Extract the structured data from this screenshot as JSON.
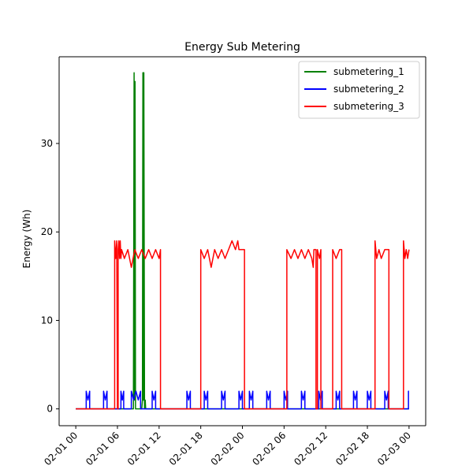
{
  "chart_data": {
    "type": "line",
    "title": "Energy Sub Metering",
    "xlabel": "",
    "ylabel": "Energy (Wh)",
    "x_unit": "datetime",
    "xlim": [
      "2007-02-01 00:00",
      "2007-02-03 00:00"
    ],
    "ylim": [
      -1.9,
      39.8
    ],
    "x_ticks": [
      "02-01 00",
      "02-01 06",
      "02-01 12",
      "02-01 18",
      "02-02 00",
      "02-02 06",
      "02-02 12",
      "02-02 18",
      "02-03 00"
    ],
    "y_ticks": [
      0,
      10,
      20,
      30
    ],
    "grid": false,
    "legend_position": "top-right",
    "series": [
      {
        "name": "submetering_1",
        "color": "#008000",
        "points": [
          [
            "2007-02-01 00:00",
            0
          ],
          [
            "2007-02-01 08:18",
            0
          ],
          [
            "2007-02-01 08:24",
            38
          ],
          [
            "2007-02-01 08:28",
            1
          ],
          [
            "2007-02-01 08:32",
            37
          ],
          [
            "2007-02-01 08:36",
            0
          ],
          [
            "2007-02-01 09:30",
            0
          ],
          [
            "2007-02-01 09:36",
            1
          ],
          [
            "2007-02-01 09:40",
            38
          ],
          [
            "2007-02-01 09:44",
            1
          ],
          [
            "2007-02-01 09:48",
            38
          ],
          [
            "2007-02-01 09:54",
            0
          ],
          [
            "2007-02-01 10:00",
            1
          ],
          [
            "2007-02-01 10:04",
            0
          ],
          [
            "2007-02-03 00:00",
            0
          ]
        ]
      },
      {
        "name": "submetering_2",
        "color": "#0000ff",
        "points": [
          [
            "2007-02-01 00:00",
            0
          ],
          [
            "2007-02-01 01:30",
            0
          ],
          [
            "2007-02-01 01:30",
            2
          ],
          [
            "2007-02-01 01:45",
            1
          ],
          [
            "2007-02-01 02:00",
            2
          ],
          [
            "2007-02-01 02:00",
            0
          ],
          [
            "2007-02-01 04:00",
            0
          ],
          [
            "2007-02-01 04:00",
            2
          ],
          [
            "2007-02-01 04:15",
            1
          ],
          [
            "2007-02-01 04:30",
            2
          ],
          [
            "2007-02-01 04:30",
            0
          ],
          [
            "2007-02-01 06:30",
            0
          ],
          [
            "2007-02-01 06:30",
            2
          ],
          [
            "2007-02-01 06:42",
            1
          ],
          [
            "2007-02-01 06:54",
            2
          ],
          [
            "2007-02-01 06:54",
            0
          ],
          [
            "2007-02-01 08:00",
            0
          ],
          [
            "2007-02-01 08:00",
            2
          ],
          [
            "2007-02-01 08:20",
            1
          ],
          [
            "2007-02-01 08:40",
            2
          ],
          [
            "2007-02-01 09:00",
            1
          ],
          [
            "2007-02-01 09:20",
            2
          ],
          [
            "2007-02-01 09:20",
            0
          ],
          [
            "2007-02-01 11:00",
            0
          ],
          [
            "2007-02-01 11:00",
            2
          ],
          [
            "2007-02-01 11:15",
            1
          ],
          [
            "2007-02-01 11:30",
            2
          ],
          [
            "2007-02-01 11:30",
            0
          ],
          [
            "2007-02-01 16:00",
            0
          ],
          [
            "2007-02-01 16:00",
            2
          ],
          [
            "2007-02-01 16:15",
            1
          ],
          [
            "2007-02-01 16:30",
            2
          ],
          [
            "2007-02-01 16:30",
            0
          ],
          [
            "2007-02-01 18:30",
            0
          ],
          [
            "2007-02-01 18:30",
            2
          ],
          [
            "2007-02-01 18:45",
            1
          ],
          [
            "2007-02-01 19:00",
            2
          ],
          [
            "2007-02-01 19:00",
            0
          ],
          [
            "2007-02-01 21:00",
            0
          ],
          [
            "2007-02-01 21:00",
            2
          ],
          [
            "2007-02-01 21:15",
            1
          ],
          [
            "2007-02-01 21:30",
            2
          ],
          [
            "2007-02-01 21:30",
            0
          ],
          [
            "2007-02-01 23:30",
            0
          ],
          [
            "2007-02-01 23:30",
            2
          ],
          [
            "2007-02-01 23:45",
            1
          ],
          [
            "2007-02-02 00:00",
            2
          ],
          [
            "2007-02-02 00:00",
            0
          ],
          [
            "2007-02-02 01:00",
            0
          ],
          [
            "2007-02-02 01:00",
            2
          ],
          [
            "2007-02-02 01:15",
            1
          ],
          [
            "2007-02-02 01:30",
            2
          ],
          [
            "2007-02-02 01:30",
            0
          ],
          [
            "2007-02-02 03:30",
            0
          ],
          [
            "2007-02-02 03:30",
            2
          ],
          [
            "2007-02-02 03:45",
            1
          ],
          [
            "2007-02-02 04:00",
            2
          ],
          [
            "2007-02-02 04:00",
            0
          ],
          [
            "2007-02-02 06:00",
            0
          ],
          [
            "2007-02-02 06:00",
            2
          ],
          [
            "2007-02-02 06:15",
            1
          ],
          [
            "2007-02-02 06:30",
            2
          ],
          [
            "2007-02-02 06:30",
            0
          ],
          [
            "2007-02-02 08:30",
            0
          ],
          [
            "2007-02-02 08:30",
            2
          ],
          [
            "2007-02-02 08:45",
            1
          ],
          [
            "2007-02-02 09:00",
            2
          ],
          [
            "2007-02-02 09:00",
            0
          ],
          [
            "2007-02-02 11:00",
            0
          ],
          [
            "2007-02-02 11:00",
            2
          ],
          [
            "2007-02-02 11:15",
            1
          ],
          [
            "2007-02-02 11:30",
            2
          ],
          [
            "2007-02-02 11:30",
            0
          ],
          [
            "2007-02-02 13:30",
            0
          ],
          [
            "2007-02-02 13:30",
            2
          ],
          [
            "2007-02-02 13:45",
            1
          ],
          [
            "2007-02-02 14:00",
            2
          ],
          [
            "2007-02-02 14:00",
            0
          ],
          [
            "2007-02-02 16:00",
            0
          ],
          [
            "2007-02-02 16:00",
            2
          ],
          [
            "2007-02-02 16:15",
            1
          ],
          [
            "2007-02-02 16:30",
            2
          ],
          [
            "2007-02-02 16:30",
            0
          ],
          [
            "2007-02-02 18:00",
            0
          ],
          [
            "2007-02-02 18:00",
            2
          ],
          [
            "2007-02-02 18:15",
            1
          ],
          [
            "2007-02-02 18:30",
            2
          ],
          [
            "2007-02-02 18:30",
            0
          ],
          [
            "2007-02-02 20:30",
            0
          ],
          [
            "2007-02-02 20:30",
            2
          ],
          [
            "2007-02-02 20:45",
            1
          ],
          [
            "2007-02-02 21:00",
            2
          ],
          [
            "2007-02-02 21:00",
            0
          ],
          [
            "2007-02-02 23:55",
            0
          ],
          [
            "2007-02-02 23:55",
            2
          ],
          [
            "2007-02-03 00:00",
            2
          ]
        ]
      },
      {
        "name": "submetering_3",
        "color": "#ff0000",
        "points": [
          [
            "2007-02-01 00:00",
            0
          ],
          [
            "2007-02-01 05:36",
            0
          ],
          [
            "2007-02-01 05:36",
            19
          ],
          [
            "2007-02-01 05:45",
            17
          ],
          [
            "2007-02-01 05:54",
            19
          ],
          [
            "2007-02-01 06:00",
            0
          ],
          [
            "2007-02-01 06:06",
            0
          ],
          [
            "2007-02-01 06:06",
            18
          ],
          [
            "2007-02-01 06:12",
            19
          ],
          [
            "2007-02-01 06:18",
            17
          ],
          [
            "2007-02-01 06:24",
            19
          ],
          [
            "2007-02-01 06:30",
            17
          ],
          [
            "2007-02-01 06:36",
            18
          ],
          [
            "2007-02-01 07:00",
            17
          ],
          [
            "2007-02-01 07:30",
            18
          ],
          [
            "2007-02-01 08:00",
            16
          ],
          [
            "2007-02-01 08:30",
            18
          ],
          [
            "2007-02-01 09:00",
            17
          ],
          [
            "2007-02-01 09:30",
            18
          ],
          [
            "2007-02-01 10:00",
            17
          ],
          [
            "2007-02-01 10:30",
            18
          ],
          [
            "2007-02-01 11:00",
            17
          ],
          [
            "2007-02-01 11:30",
            18
          ],
          [
            "2007-02-01 12:00",
            17
          ],
          [
            "2007-02-01 12:12",
            18
          ],
          [
            "2007-02-01 12:12",
            0
          ],
          [
            "2007-02-01 18:00",
            0
          ],
          [
            "2007-02-01 18:00",
            18
          ],
          [
            "2007-02-01 18:30",
            17
          ],
          [
            "2007-02-01 19:00",
            18
          ],
          [
            "2007-02-01 19:30",
            16
          ],
          [
            "2007-02-01 20:00",
            18
          ],
          [
            "2007-02-01 20:30",
            17
          ],
          [
            "2007-02-01 21:00",
            18
          ],
          [
            "2007-02-01 21:30",
            17
          ],
          [
            "2007-02-01 22:00",
            18
          ],
          [
            "2007-02-01 22:30",
            19
          ],
          [
            "2007-02-01 23:00",
            18
          ],
          [
            "2007-02-01 23:20",
            19
          ],
          [
            "2007-02-01 23:30",
            18
          ],
          [
            "2007-02-02 00:18",
            18
          ],
          [
            "2007-02-02 00:18",
            0
          ],
          [
            "2007-02-02 06:24",
            0
          ],
          [
            "2007-02-02 06:24",
            18
          ],
          [
            "2007-02-02 07:00",
            17
          ],
          [
            "2007-02-02 07:30",
            18
          ],
          [
            "2007-02-02 08:00",
            17
          ],
          [
            "2007-02-02 08:30",
            18
          ],
          [
            "2007-02-02 09:00",
            17
          ],
          [
            "2007-02-02 09:30",
            18
          ],
          [
            "2007-02-02 10:00",
            17
          ],
          [
            "2007-02-02 10:12",
            16
          ],
          [
            "2007-02-02 10:18",
            18
          ],
          [
            "2007-02-02 10:36",
            18
          ],
          [
            "2007-02-02 10:36",
            0
          ],
          [
            "2007-02-02 10:48",
            0
          ],
          [
            "2007-02-02 10:48",
            18
          ],
          [
            "2007-02-02 11:06",
            17
          ],
          [
            "2007-02-02 11:18",
            18
          ],
          [
            "2007-02-02 11:18",
            0
          ],
          [
            "2007-02-02 13:00",
            0
          ],
          [
            "2007-02-02 13:00",
            18
          ],
          [
            "2007-02-02 13:30",
            17
          ],
          [
            "2007-02-02 14:00",
            18
          ],
          [
            "2007-02-02 14:18",
            18
          ],
          [
            "2007-02-02 14:18",
            0
          ],
          [
            "2007-02-02 19:06",
            0
          ],
          [
            "2007-02-02 19:06",
            19
          ],
          [
            "2007-02-02 19:20",
            17
          ],
          [
            "2007-02-02 19:40",
            18
          ],
          [
            "2007-02-02 20:00",
            17
          ],
          [
            "2007-02-02 20:30",
            18
          ],
          [
            "2007-02-02 21:06",
            18
          ],
          [
            "2007-02-02 21:06",
            0
          ],
          [
            "2007-02-02 23:12",
            0
          ],
          [
            "2007-02-02 23:12",
            19
          ],
          [
            "2007-02-02 23:24",
            17
          ],
          [
            "2007-02-02 23:36",
            18
          ],
          [
            "2007-02-02 23:48",
            17
          ],
          [
            "2007-02-03 00:00",
            18
          ]
        ]
      }
    ]
  }
}
